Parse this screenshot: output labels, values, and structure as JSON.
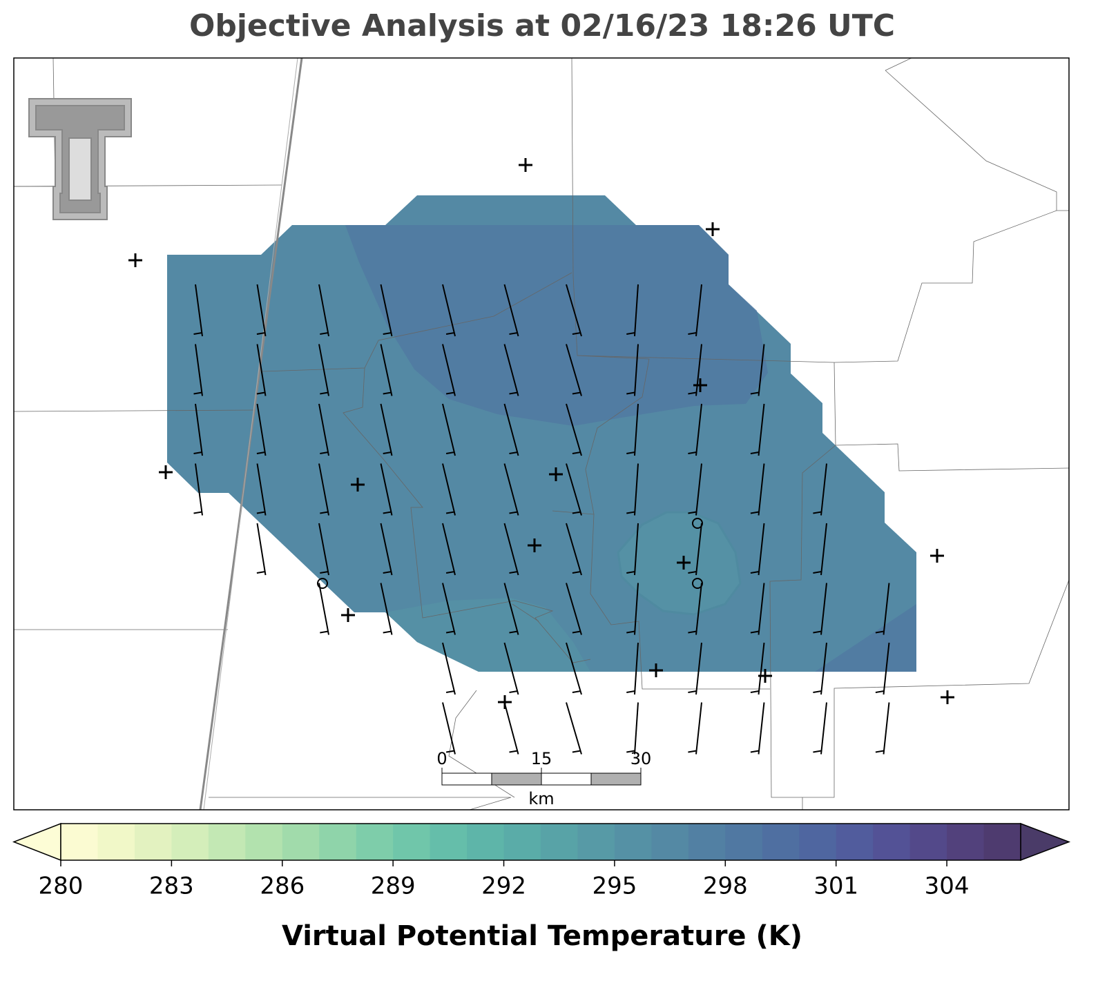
{
  "title": "Objective Analysis at 02/16/23 18:26 UTC",
  "chart_data": {
    "type": "colorbar",
    "label": "Virtual Potential Temperature (K)",
    "xlim": [
      280,
      306
    ],
    "xticks": [
      280,
      283,
      286,
      289,
      292,
      295,
      298,
      301,
      304
    ],
    "levels": [
      280,
      281,
      282,
      283,
      284,
      285,
      286,
      287,
      288,
      289,
      290,
      291,
      292,
      293,
      294,
      295,
      296,
      297,
      298,
      299,
      300,
      301,
      302,
      303,
      304,
      305,
      306
    ],
    "colors": [
      "#fbfbd2",
      "#f1f8c8",
      "#e3f2c0",
      "#d4eeba",
      "#c3e8b4",
      "#b2e2ae",
      "#a1dbab",
      "#8fd4aa",
      "#7ecdaa",
      "#70c6aa",
      "#65beaa",
      "#5eb5a9",
      "#5aaca8",
      "#58a3a7",
      "#579aa6",
      "#5591a5",
      "#5489a4",
      "#5280a3",
      "#5078a2",
      "#4f6fa1",
      "#4f66a0",
      "#515c9d",
      "#535296",
      "#53498a",
      "#52417c",
      "#4e3b6f"
    ],
    "under_color": "#fdfdd6",
    "over_color": "#4a3b68"
  },
  "scale_bar": {
    "ticks": [
      0,
      15,
      30
    ],
    "unit": "km"
  }
}
